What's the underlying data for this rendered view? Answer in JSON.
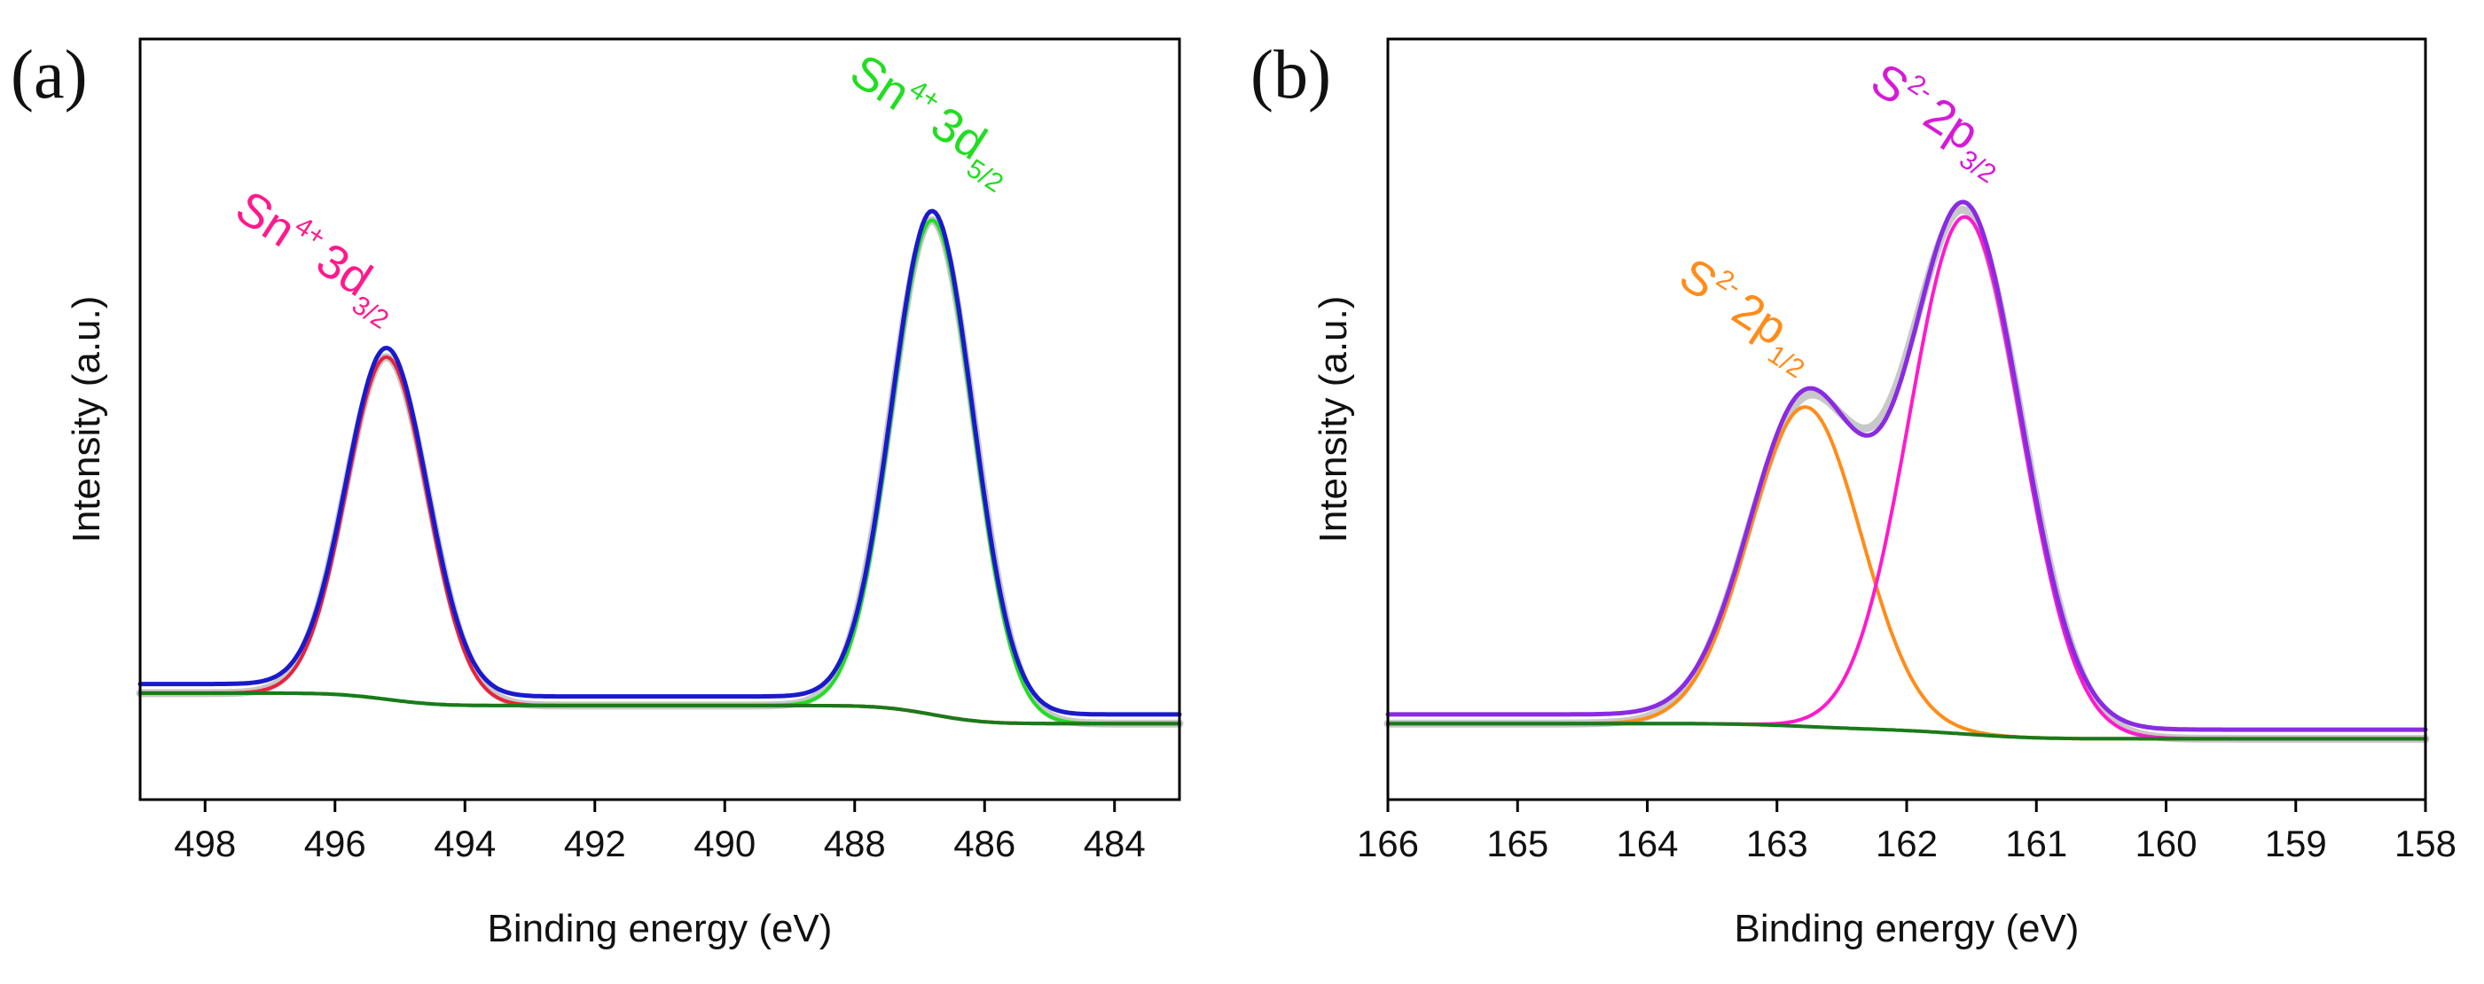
{
  "chart_data": [
    {
      "type": "line",
      "panel_label": "(a)",
      "xlabel": "Binding energy (eV)",
      "ylabel": "Intensity (a.u.)",
      "xlim": [
        499,
        483
      ],
      "ylim": [
        0,
        1
      ],
      "x_ticks": [
        498,
        496,
        494,
        492,
        490,
        488,
        486,
        484
      ],
      "x_tick_labels": [
        "498",
        "496",
        "494",
        "492",
        "490",
        "488",
        "486",
        "484"
      ],
      "background": {
        "high": 0.14,
        "low": 0.1
      },
      "peaks": [
        {
          "name": "Sn 3d3/2",
          "center": 495.2,
          "sigma": 0.62,
          "amplitude": 0.45,
          "color": "#e8233d",
          "label": {
            "main": "Sn",
            "charge": "4+",
            "orbital": "3d",
            "sub": "3/2",
            "color": "#ff1a8c"
          }
        },
        {
          "name": "Sn 3d5/2",
          "center": 486.8,
          "sigma": 0.62,
          "amplitude": 0.65,
          "color": "#22dd22",
          "label": {
            "main": "Sn",
            "charge": "4+",
            "orbital": "3d",
            "sub": "5/2",
            "color": "#22dd22"
          }
        }
      ],
      "series": [
        {
          "name": "raw data",
          "color": "#c8c8c8"
        },
        {
          "name": "Sn 3d3/2 fit",
          "color": "#e8233d"
        },
        {
          "name": "Sn 3d5/2 fit",
          "color": "#22dd22"
        },
        {
          "name": "background",
          "color": "#1a7a1a"
        },
        {
          "name": "envelope",
          "color": "#1a1acc"
        }
      ]
    },
    {
      "type": "line",
      "panel_label": "(b)",
      "xlabel": "Binding energy (eV)",
      "ylabel": "Intensity (a.u.)",
      "xlim": [
        166,
        158
      ],
      "ylim": [
        0,
        1
      ],
      "x_ticks": [
        166,
        165,
        164,
        163,
        162,
        161,
        160,
        159,
        158
      ],
      "x_tick_labels": [
        "166",
        "165",
        "164",
        "163",
        "162",
        "161",
        "160",
        "159",
        "158"
      ],
      "background": {
        "high": 0.1,
        "low": 0.08
      },
      "peaks": [
        {
          "name": "S 2p1/2",
          "center": 162.78,
          "sigma": 0.43,
          "amplitude": 0.42,
          "color": "#ff8c1a",
          "label": {
            "main": "S",
            "charge": "2-",
            "orbital": "2p",
            "sub": "1/2",
            "color": "#ff8c1a"
          }
        },
        {
          "name": "S 2p3/2",
          "center": 161.55,
          "sigma": 0.43,
          "amplitude": 0.68,
          "color": "#ff1acc",
          "label": {
            "main": "S",
            "charge": "2-",
            "orbital": "2p",
            "sub": "3/2",
            "color": "#d61ad6"
          }
        }
      ],
      "series": [
        {
          "name": "raw data",
          "color": "#c8c8c8"
        },
        {
          "name": "S 2p1/2 fit",
          "color": "#ff8c1a"
        },
        {
          "name": "S 2p3/2 fit",
          "color": "#ff1acc"
        },
        {
          "name": "background",
          "color": "#1a7a1a"
        },
        {
          "name": "envelope",
          "color": "#8a2be2"
        }
      ]
    }
  ]
}
